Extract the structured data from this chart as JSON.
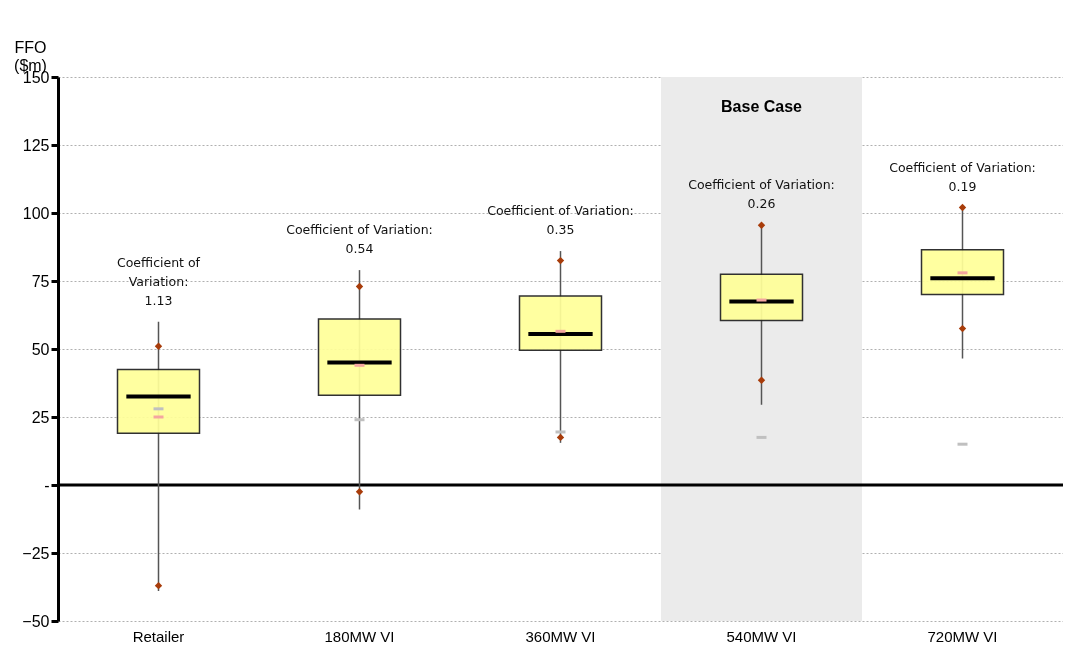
{
  "chart_data": {
    "type": "box",
    "ylabel": "FFO\n($m)",
    "categories": [
      "Retailer",
      "180MW VI",
      "360MW VI",
      "540MW VI",
      "720MW VI"
    ],
    "ylim": [
      -50,
      150
    ],
    "yticks": [
      -50,
      -25,
      {
        "value": 0,
        "label": "-"
      },
      25,
      50,
      75,
      100,
      125,
      150
    ],
    "grid": "y",
    "series": [
      {
        "color": "#ffff99",
        "boxes": [
          {
            "low": -39,
            "q1": 19,
            "median": 32.5,
            "q3": 42.5,
            "high": 60
          },
          {
            "low": -9,
            "q1": 33,
            "median": 45,
            "q3": 61,
            "high": 79
          },
          {
            "low": 15.5,
            "q1": 49.5,
            "median": 55.5,
            "q3": 69.5,
            "high": 86
          },
          {
            "low": 29.5,
            "q1": 60.5,
            "median": 67.5,
            "q3": 77.5,
            "high": 95.5
          },
          {
            "low": 46.5,
            "q1": 70,
            "median": 76,
            "q3": 86.5,
            "high": 102
          }
        ]
      },
      {
        "type": "scatter",
        "color": "#a83c0a",
        "marker": "diamond",
        "x": [
          "Retailer",
          "Retailer",
          "180MW VI",
          "180MW VI",
          "360MW VI",
          "360MW VI",
          "540MW VI",
          "540MW VI",
          "720MW VI",
          "720MW VI"
        ],
        "values": [
          51,
          -37,
          73,
          -2.5,
          82.5,
          17.5,
          95.5,
          38.5,
          102,
          57.5
        ]
      },
      {
        "type": "scatter",
        "color": "#c0c0c0",
        "x": [
          "Retailer",
          "180MW VI",
          "360MW VI",
          "540MW VI",
          "720MW VI"
        ],
        "values": [
          28,
          24,
          19.5,
          17.5,
          15
        ]
      },
      {
        "type": "scatter",
        "color": "#f4a6a0",
        "x": [
          "Retailer",
          "180MW VI",
          "360MW VI",
          "540MW VI",
          "720MW VI"
        ],
        "values": [
          25,
          44,
          56.5,
          68,
          78
        ]
      }
    ],
    "ref_lines": [
      {
        "axis": "y",
        "value": 0,
        "color": "#000000"
      }
    ],
    "bands": [
      {
        "axis": "x",
        "from": "540MW VI",
        "to": "540MW VI",
        "label": "Base Case",
        "color": "#ebebeb"
      }
    ],
    "annotations": [
      "Coefficient of\nVariation:\n1.13",
      "Coefficient of Variation:\n0.54",
      "Coefficient of Variation:\n0.35",
      "Coefficient of Variation:\n0.26",
      "Coefficient of Variation:\n0.19"
    ]
  }
}
